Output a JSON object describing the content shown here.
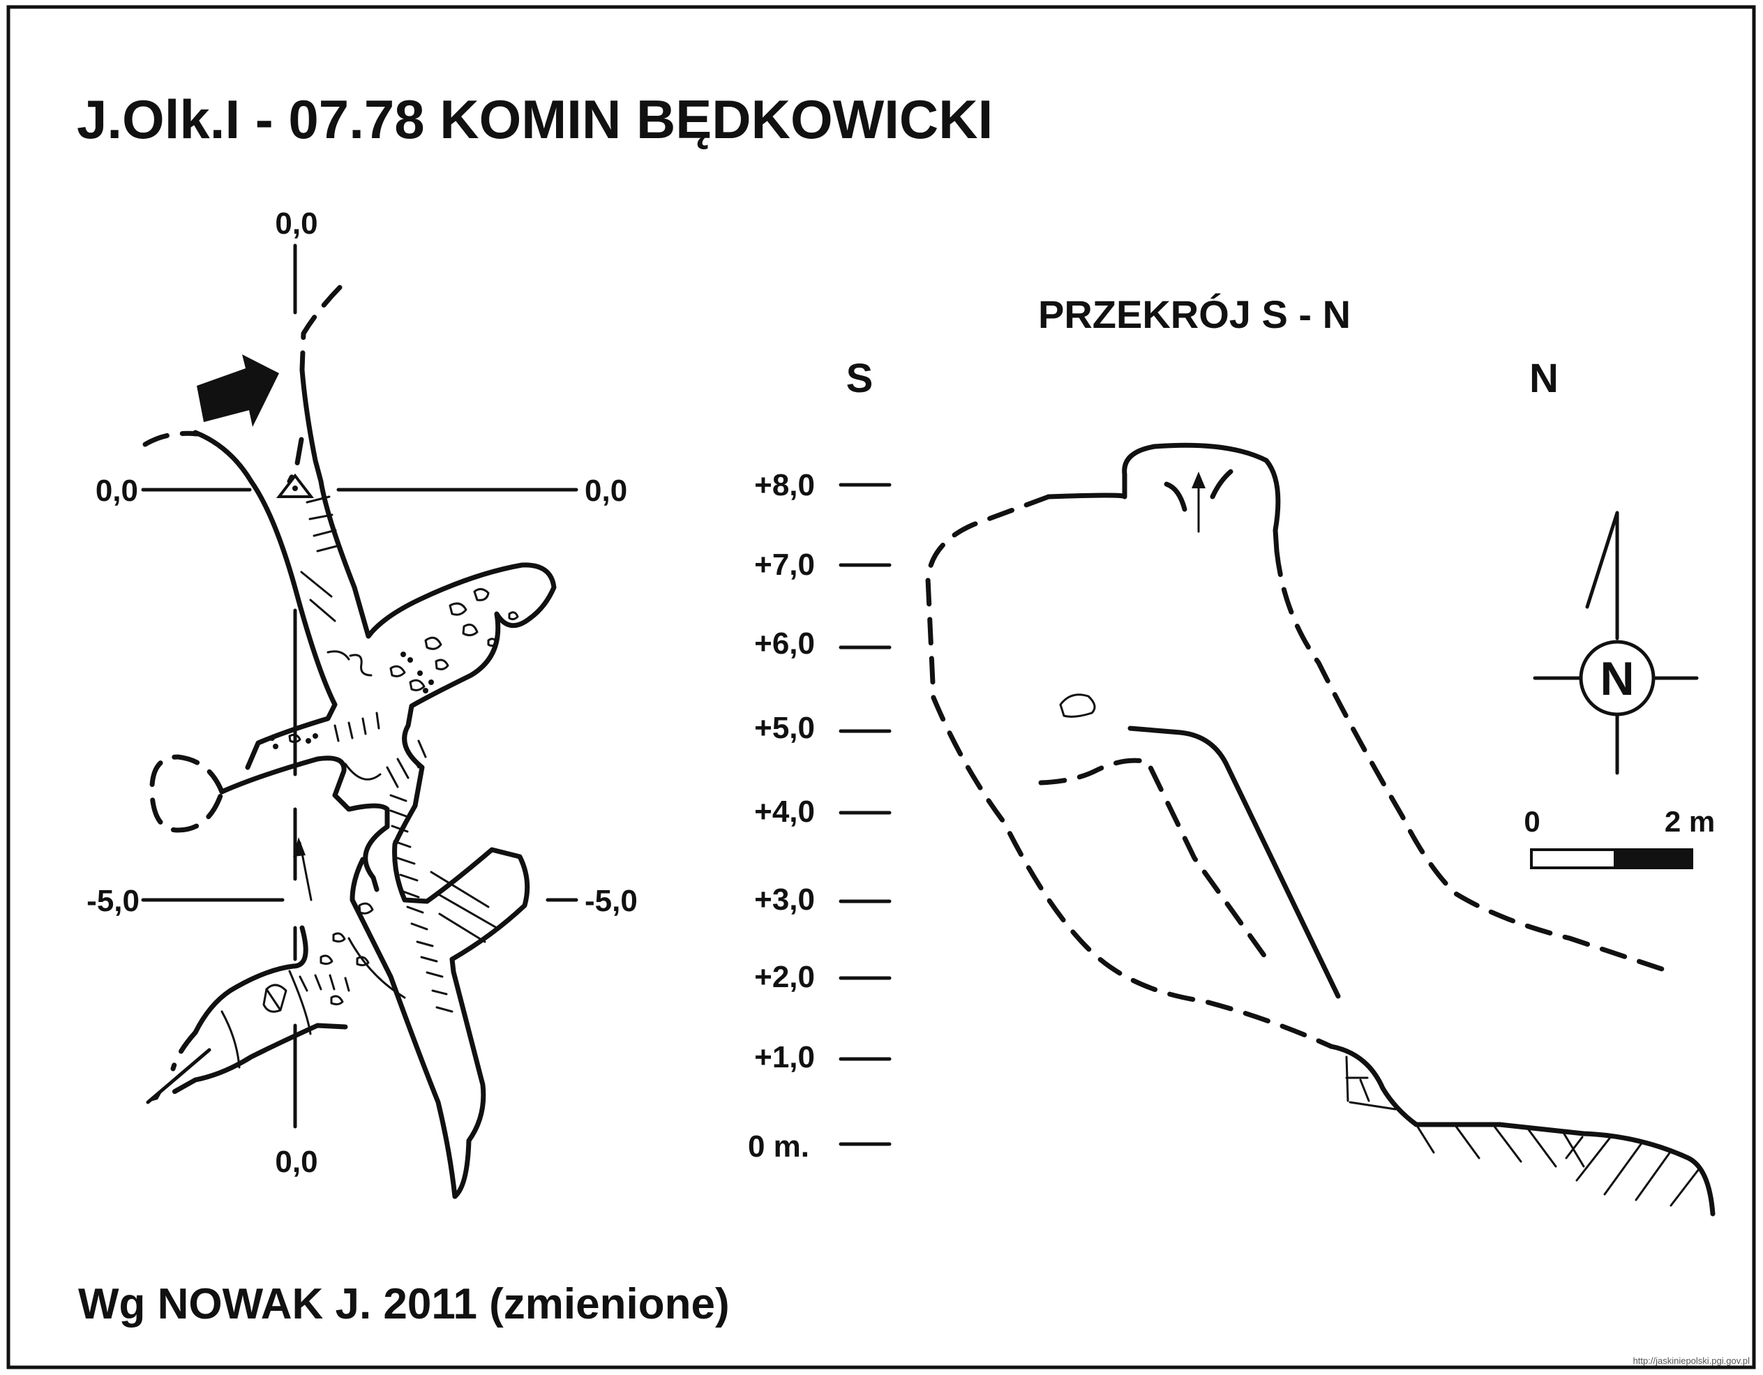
{
  "title": "J.Olk.I - 07.78  KOMIN BĘDKOWICKI",
  "section_title": "PRZEKRÓJ S - N",
  "section_directions": {
    "left": "S",
    "right": "N"
  },
  "plan_grid_labels": {
    "top": "0,0",
    "bottom": "0,0",
    "left_upper": "0,0",
    "right_upper": "0,0",
    "left_lower": "-5,0",
    "right_lower": "-5,0"
  },
  "elevation_scale": [
    "+8,0",
    "+7,0",
    "+6,0",
    "+5,0",
    "+4,0",
    "+3,0",
    "+2,0",
    "+1,0",
    "0 m."
  ],
  "north_arrow": {
    "letter": "N"
  },
  "scale_bar": {
    "start": "0",
    "end": "2 m"
  },
  "credit": "Wg NOWAK J. 2011 (zmienione)",
  "source_url": "http://jaskiniepolski.pgi.gov.pl",
  "colors": {
    "ink": "#111111",
    "paper": "#ffffff"
  }
}
